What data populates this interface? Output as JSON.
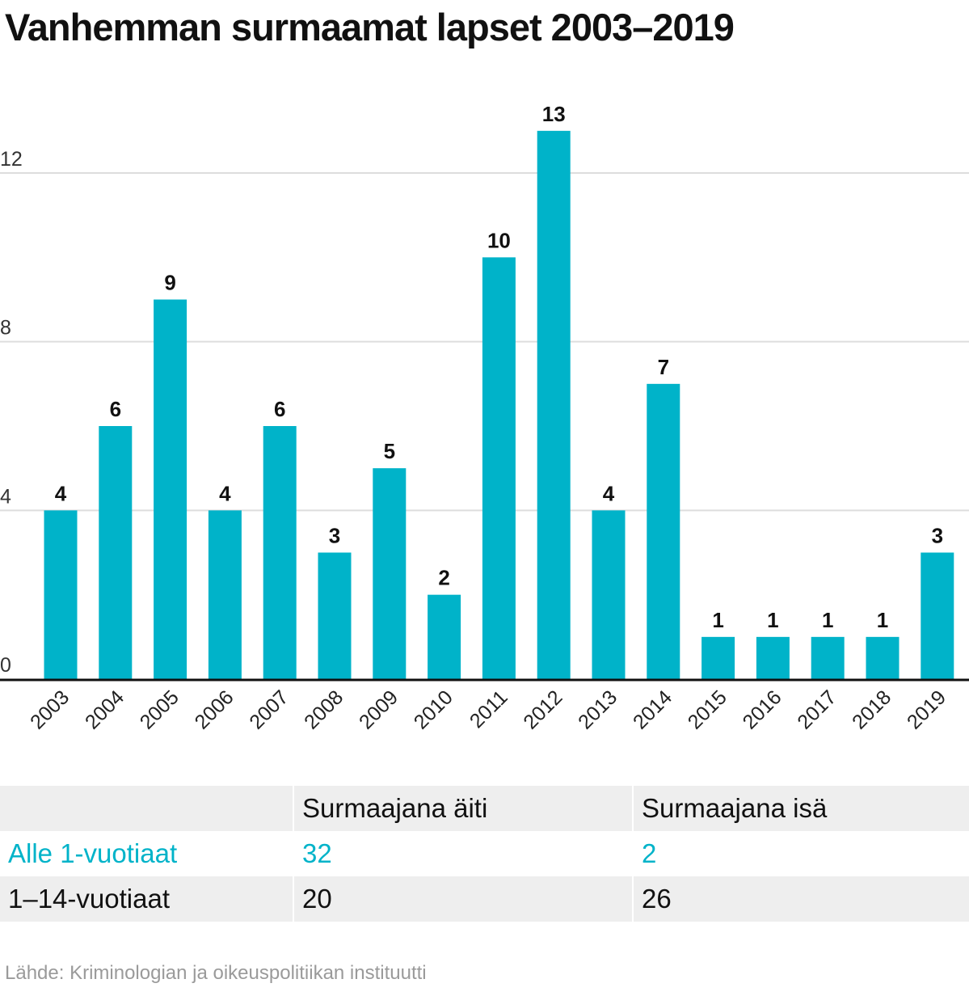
{
  "title": "Vanhemman surmaamat lapset 2003–2019",
  "colors": {
    "bar": "#00b3c9",
    "highlight": "#00b3c9",
    "text": "#111111",
    "grid": "#dddddd",
    "source": "#9a9a9a"
  },
  "chart_data": {
    "type": "bar",
    "title": "Vanhemman surmaamat lapset 2003–2019",
    "xlabel": "",
    "ylabel": "",
    "ylim": [
      0,
      13
    ],
    "yticks": [
      0,
      4,
      8,
      12
    ],
    "grid": true,
    "categories": [
      "2003",
      "2004",
      "2005",
      "2006",
      "2007",
      "2008",
      "2009",
      "2010",
      "2011",
      "2012",
      "2013",
      "2014",
      "2015",
      "2016",
      "2017",
      "2018",
      "2019"
    ],
    "values": [
      4,
      6,
      9,
      4,
      6,
      3,
      5,
      2,
      10,
      13,
      4,
      7,
      1,
      1,
      1,
      1,
      3
    ]
  },
  "table": {
    "headers": [
      "",
      "Surmaajana äiti",
      "Surmaajana isä"
    ],
    "rows": [
      {
        "label": "Alle 1-vuotiaat",
        "mother": "32",
        "father": "2",
        "highlight": true
      },
      {
        "label": "1–14-vuotiaat",
        "mother": "20",
        "father": "26",
        "highlight": false
      }
    ]
  },
  "source": "Lähde: Kriminologian ja oikeuspolitiikan instituutti"
}
